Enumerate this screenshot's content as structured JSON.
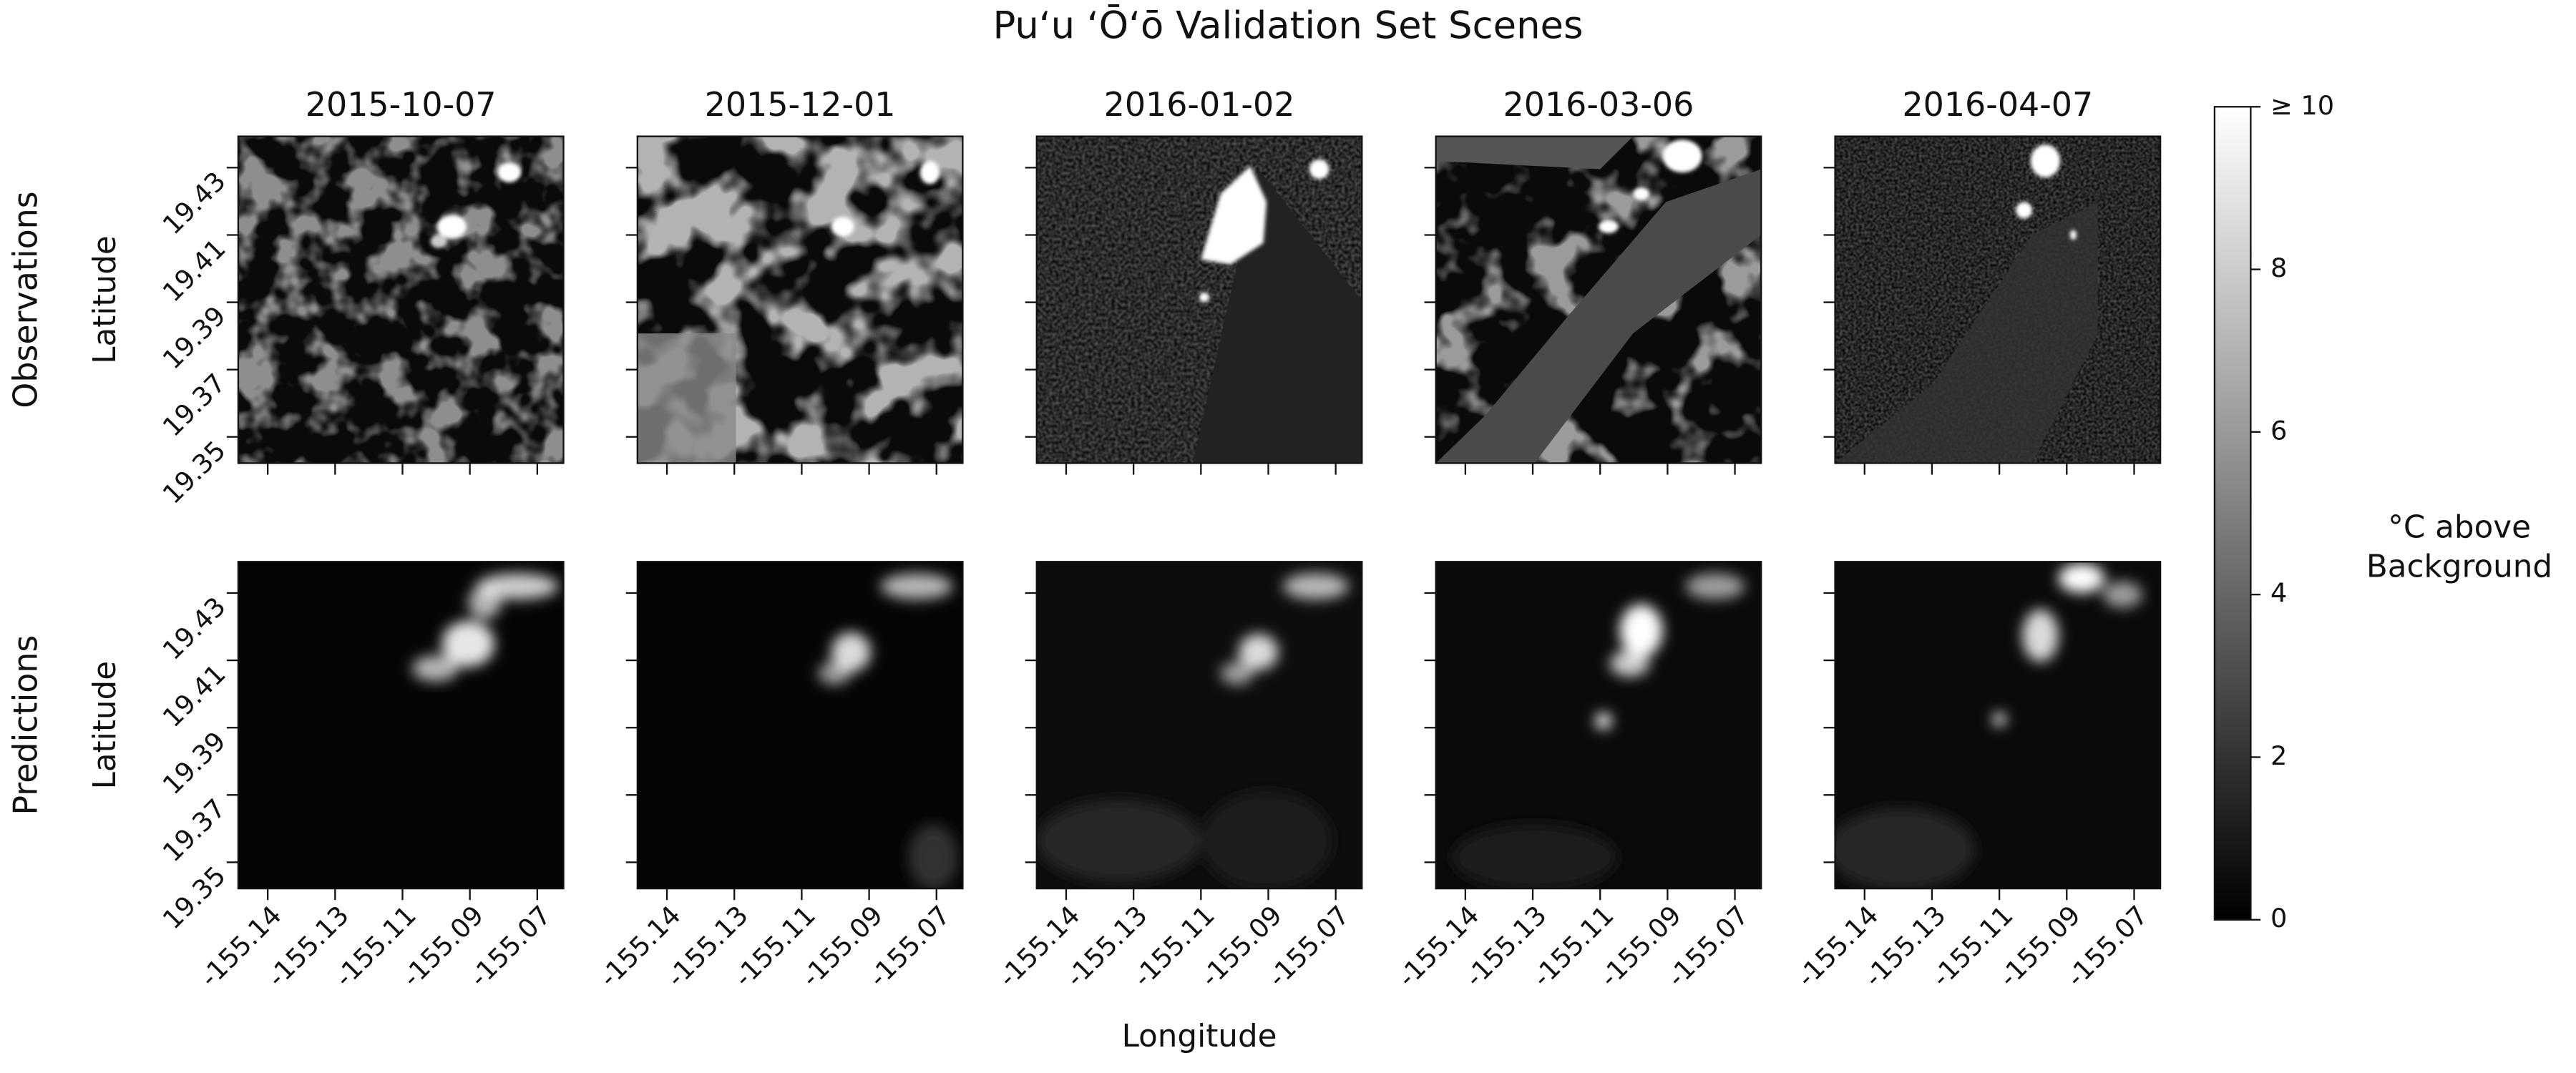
{
  "chart_data": {
    "type": "heatmap",
    "title": "Pu‘u ‘Ō‘ō Validation Set Scenes",
    "columns": [
      "2015-10-07",
      "2015-12-01",
      "2016-01-02",
      "2016-03-06",
      "2016-04-07"
    ],
    "rows": [
      "Observations",
      "Predictions"
    ],
    "xlabel": "Longitude",
    "ylabel": "Latitude",
    "xlim": [
      -155.1521,
      -155.0628
    ],
    "xticks": [
      {
        "value": -155.144,
        "label": "-155.14"
      },
      {
        "value": -155.1255,
        "label": "-155.13"
      },
      {
        "value": -155.107,
        "label": "-155.11"
      },
      {
        "value": -155.0885,
        "label": "-155.09"
      },
      {
        "value": -155.07,
        "label": "-155.07"
      }
    ],
    "ylim": [
      19.3422,
      19.4393
    ],
    "yticks": [
      19.35,
      19.37,
      19.39,
      19.41,
      19.43
    ],
    "colormap": "gray",
    "clim": [
      0,
      10
    ],
    "cticks": [
      0,
      2,
      4,
      6,
      8,
      {
        "value": 10,
        "label": "≥ 10"
      }
    ],
    "colorbar_label": [
      "°C above",
      "Background"
    ]
  }
}
